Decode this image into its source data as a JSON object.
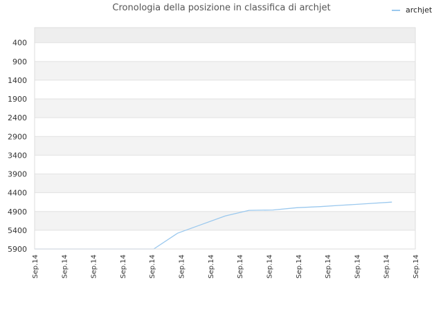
{
  "chart_data": {
    "type": "line",
    "title": "Cronologia della posizione in classifica di archjet",
    "xlabel": "",
    "ylabel": "",
    "y_inverted": true,
    "ylim": [
      0,
      5900
    ],
    "y_ticks": [
      400,
      900,
      1400,
      1900,
      2400,
      2900,
      3400,
      3900,
      4400,
      4900,
      5400,
      5900
    ],
    "x_tick_labels": [
      "Sep.14",
      "Sep.14",
      "Sep.14",
      "Sep.14",
      "Sep.14",
      "Sep.14",
      "Sep.14",
      "Sep.14",
      "Sep.14",
      "Sep.14",
      "Sep.14",
      "Sep.14",
      "Sep.14",
      "Sep.14"
    ],
    "legend_position": "top-right",
    "grid": true,
    "series": [
      {
        "name": "archjet",
        "color": "#9ac8ee",
        "x": [
          0,
          1,
          2,
          3,
          4,
          5,
          6,
          7,
          8,
          9,
          10,
          11,
          12,
          13,
          14,
          15
        ],
        "values": [
          5900,
          5900,
          5900,
          5900,
          5900,
          5900,
          5480,
          5250,
          5020,
          4870,
          4860,
          4800,
          4770,
          4730,
          4690,
          4650
        ]
      }
    ]
  }
}
